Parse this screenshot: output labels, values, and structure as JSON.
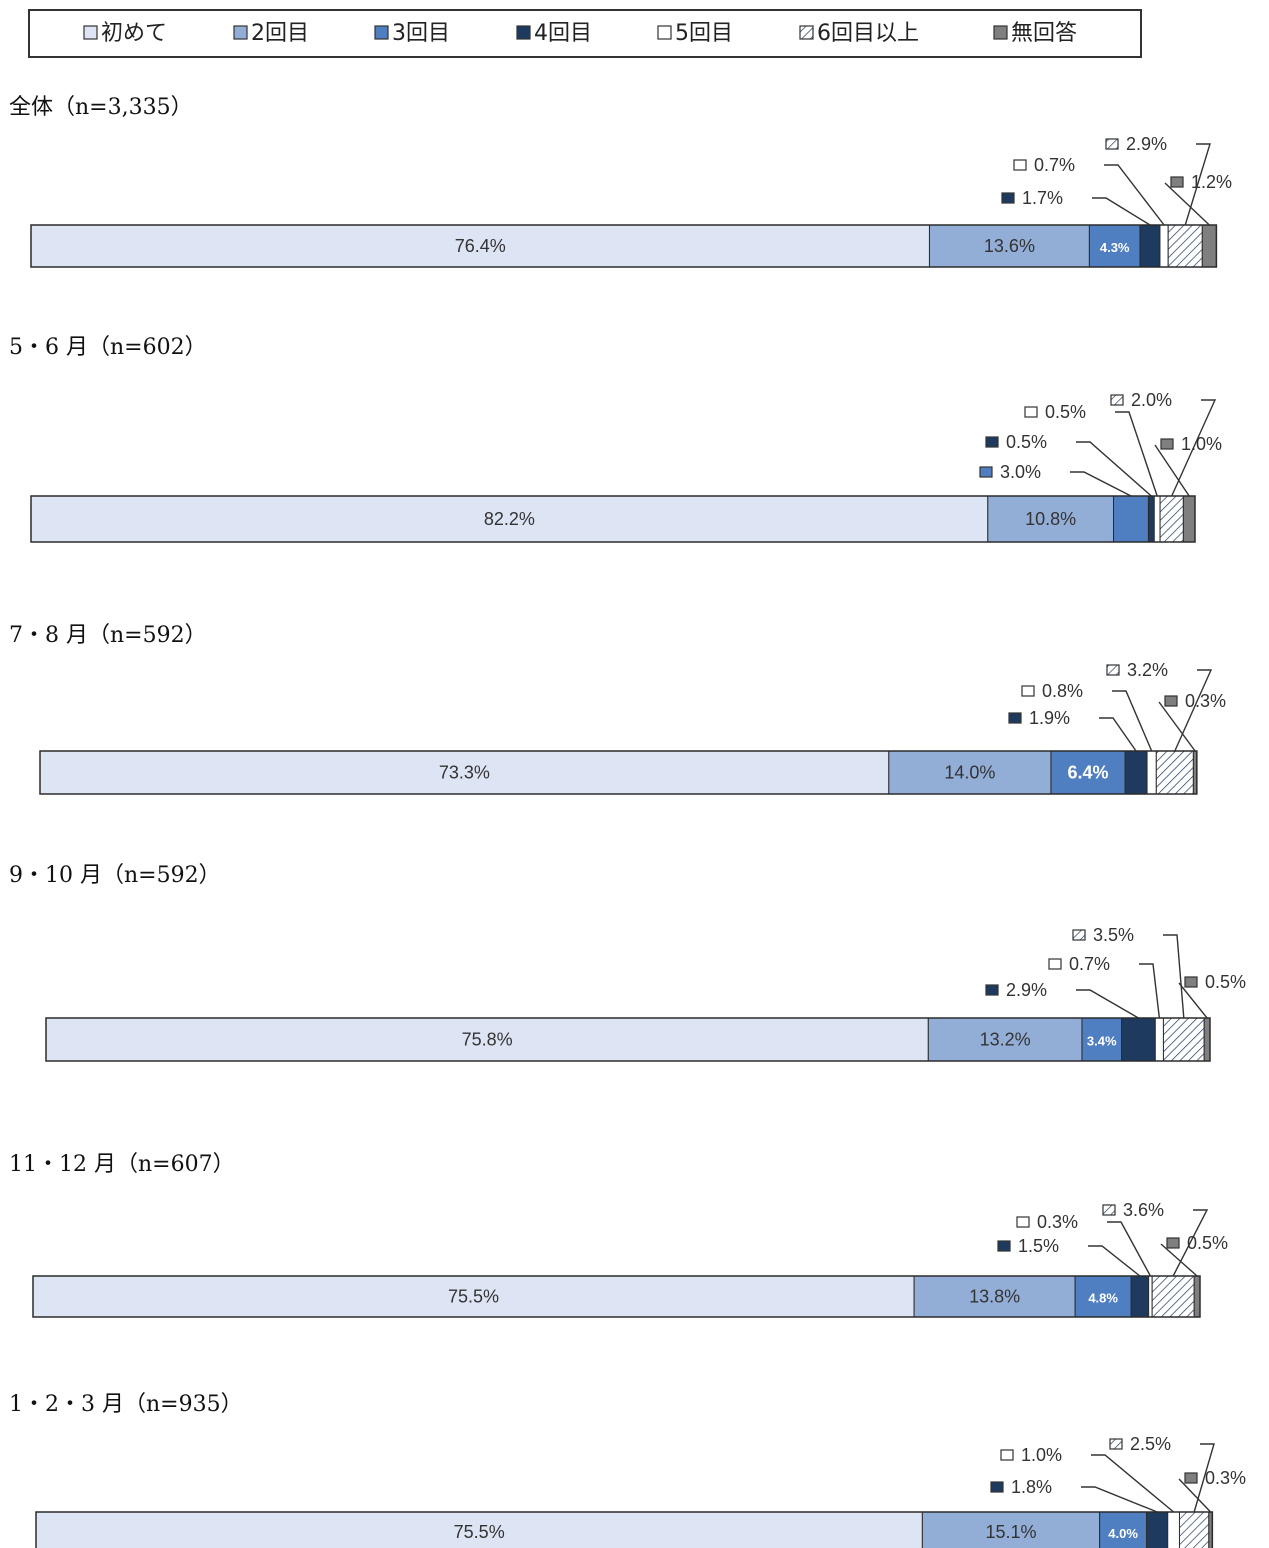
{
  "chart_data": {
    "type": "bar",
    "orientation": "horizontal",
    "stacked": true,
    "percent": true,
    "legend_position": "top",
    "series_names": [
      "初めて",
      "2回目",
      "3回目",
      "4回目",
      "5回目",
      "6回目以上",
      "無回答"
    ],
    "colors": {
      "初めて": "#dde5f4",
      "2回目": "#93aed6",
      "3回目": "#4f7fc1",
      "4回目": "#1f3a5f",
      "5回目": "#ffffff",
      "6回目以上": "hatch",
      "無回答": "#7f7f7f"
    },
    "groups": [
      {
        "title": "全体（n=3,335）",
        "values": [
          76.4,
          13.6,
          4.3,
          1.7,
          0.7,
          2.9,
          1.2
        ],
        "labels": [
          "76.4%",
          "13.6%",
          "4.3%",
          "1.7%",
          "0.7%",
          "2.9%",
          "1.2%"
        ]
      },
      {
        "title": "5・6 月（n=602）",
        "values": [
          82.2,
          10.8,
          3.0,
          0.5,
          0.5,
          2.0,
          1.0
        ],
        "labels": [
          "82.2%",
          "10.8%",
          "3.0%",
          "0.5%",
          "0.5%",
          "2.0%",
          "1.0%"
        ]
      },
      {
        "title": "7・8 月（n=592）",
        "values": [
          73.3,
          14.0,
          6.4,
          1.9,
          0.8,
          3.2,
          0.3
        ],
        "labels": [
          "73.3%",
          "14.0%",
          "6.4%",
          "1.9%",
          "0.8%",
          "3.2%",
          "0.3%"
        ]
      },
      {
        "title": "9・10 月（n=592）",
        "values": [
          75.8,
          13.2,
          3.4,
          2.9,
          0.7,
          3.5,
          0.5
        ],
        "labels": [
          "75.8%",
          "13.2%",
          "3.4%",
          "2.9%",
          "0.7%",
          "3.5%",
          "0.5%"
        ]
      },
      {
        "title": "11・12 月（n=607）",
        "values": [
          75.5,
          13.8,
          4.8,
          1.5,
          0.3,
          3.6,
          0.5
        ],
        "labels": [
          "75.5%",
          "13.8%",
          "4.8%",
          "1.5%",
          "0.3%",
          "3.6%",
          "0.5%"
        ]
      },
      {
        "title": "1・2・3 月（n=935）",
        "values": [
          75.5,
          15.1,
          4.0,
          1.8,
          1.0,
          2.5,
          0.3
        ],
        "labels": [
          "75.5%",
          "15.1%",
          "4.0%",
          "1.8%",
          "1.0%",
          "2.5%",
          "0.3%"
        ]
      }
    ]
  }
}
